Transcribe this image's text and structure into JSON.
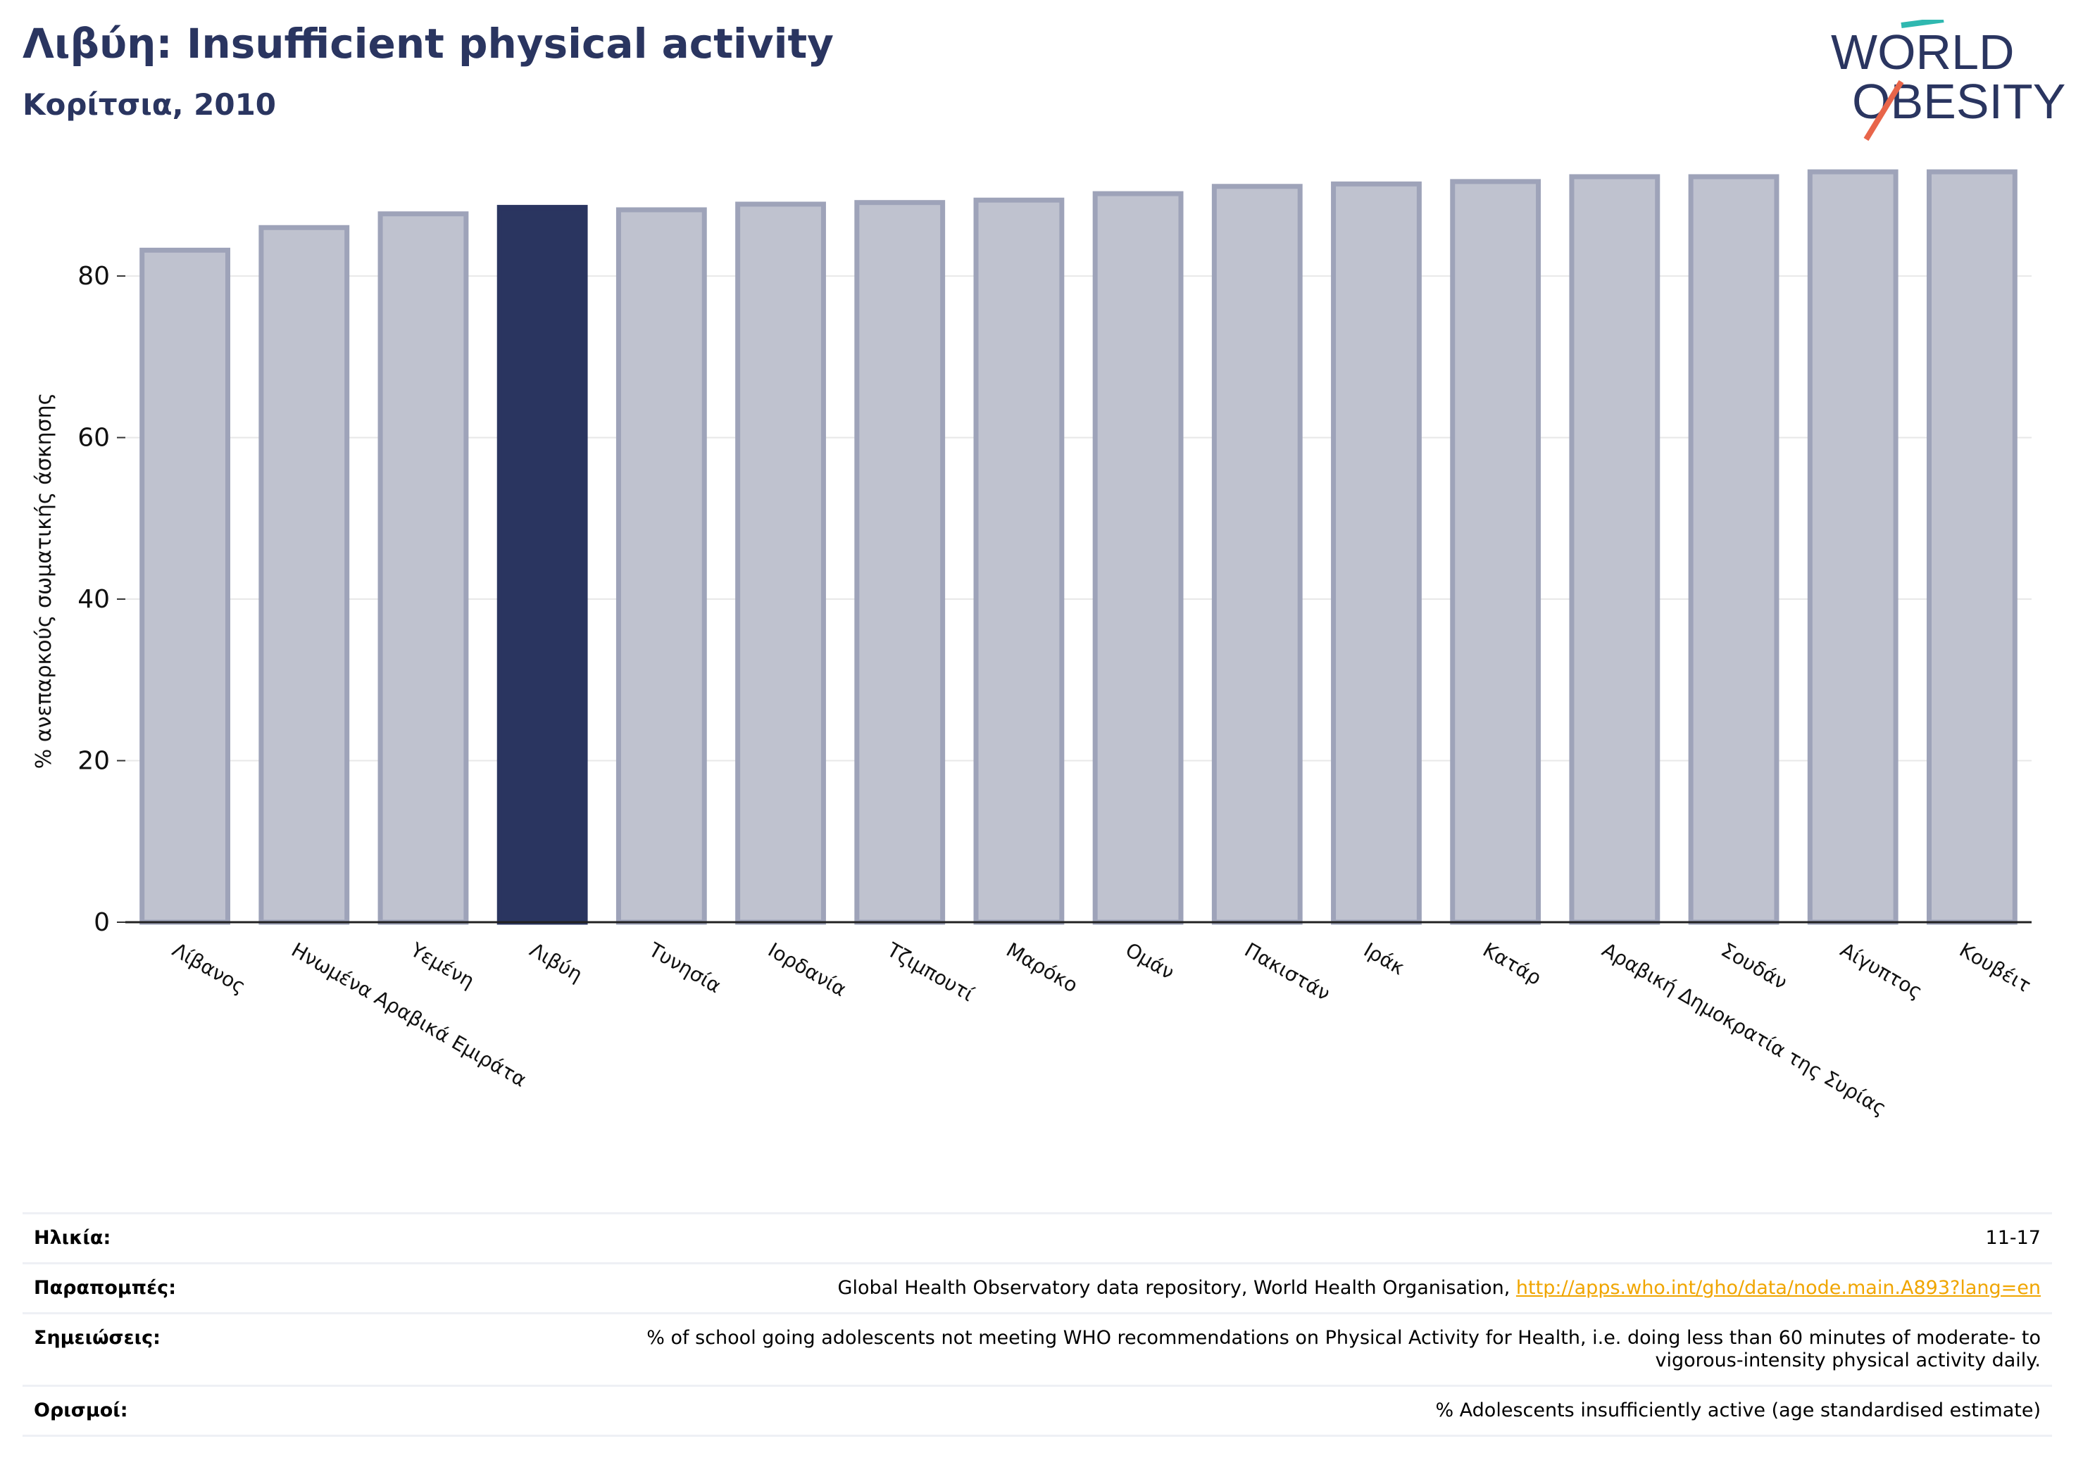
{
  "header": {
    "title": "Λιβύη: Insufficient physical activity",
    "subtitle": "Κορίτσια, 2010"
  },
  "logo": {
    "line1": "WORLD",
    "line2": "OBESITY"
  },
  "colors": {
    "highlight": "#2a3560",
    "bar_fill": "#bfc2cf",
    "bar_stroke": "#9ea3b9",
    "link": "#f0a500"
  },
  "chart_data": {
    "type": "bar",
    "ylabel": "% ανεπαρκούς σωματικής άσκησης",
    "ylim": [
      0,
      95
    ],
    "yticks": [
      0,
      20,
      40,
      60,
      80
    ],
    "grid": true,
    "highlight": "Λιβύη",
    "categories": [
      "Λίβανος",
      "Ηνωμένα Αραβικά Εμιράτα",
      "Υεμένη",
      "Λιβύη",
      "Τυνησία",
      "Ιορδανία",
      "Τζιμπουτί",
      "Μαρόκο",
      "Ομάν",
      "Πακιστάν",
      "Ιράκ",
      "Κατάρ",
      "Αραβική Δημοκρατία της Συρίας",
      "Σουδάν",
      "Αίγυπτος",
      "Κουβέιτ"
    ],
    "values": [
      83.2,
      86.0,
      87.7,
      88.5,
      88.2,
      88.9,
      89.1,
      89.4,
      90.2,
      91.1,
      91.4,
      91.7,
      92.3,
      92.3,
      92.9,
      92.9
    ]
  },
  "info": [
    {
      "label": "Ηλικία:",
      "value": "11-17"
    },
    {
      "label": "Παραπομπές:",
      "value": "Global Health Observatory data repository, World Health Organisation, ",
      "link": "http://apps.who.int/gho/data/node.main.A893?lang=en"
    },
    {
      "label": "Σημειώσεις:",
      "value": "% of school going adolescents not meeting WHO recommendations on Physical Activity for Health, i.e. doing less than 60 minutes of moderate- to vigorous-intensity physical activity daily."
    },
    {
      "label": "Ορισμοί:",
      "value": "% Adolescents insufficiently active (age standardised estimate)"
    }
  ]
}
